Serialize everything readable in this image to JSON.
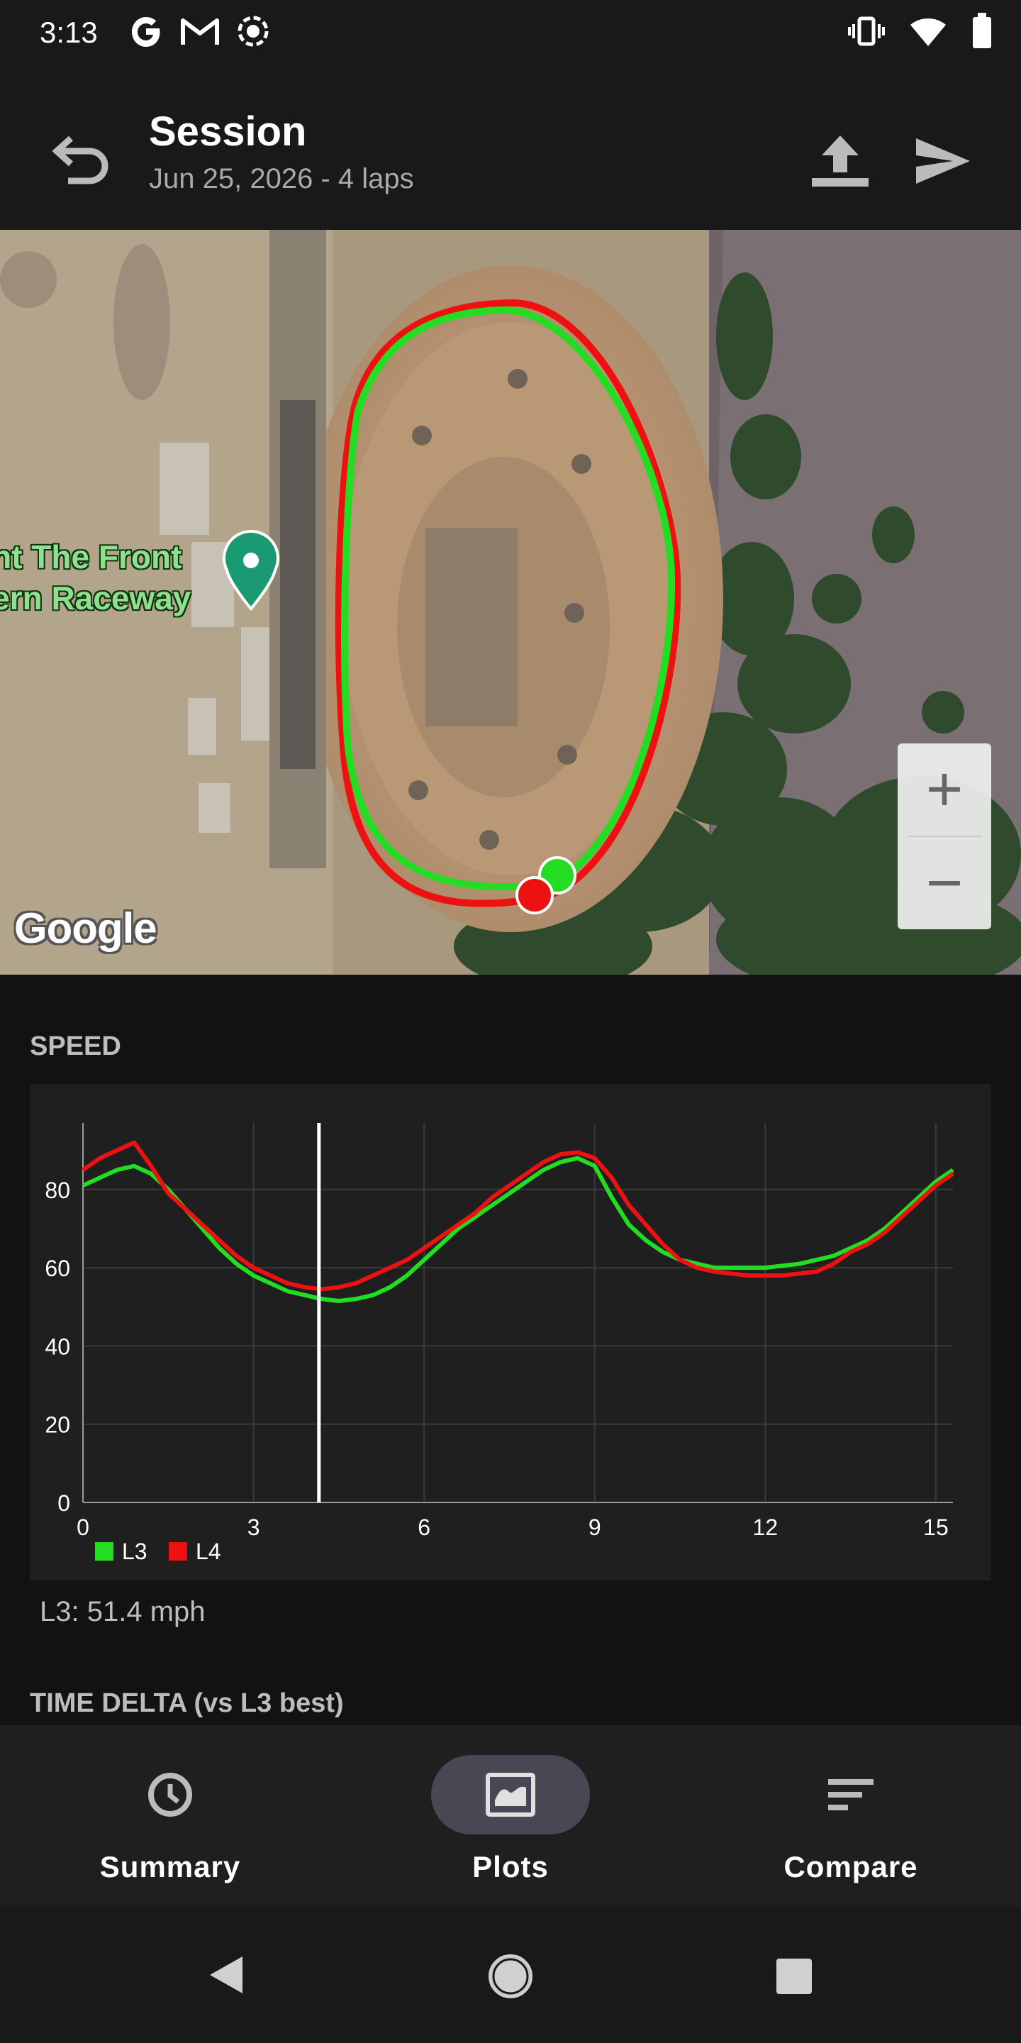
{
  "status_bar": {
    "time": "3:13",
    "left_icons": [
      "google-icon",
      "gmail-icon",
      "screen-record-icon"
    ],
    "right_icons": [
      "vibrate-icon",
      "wifi-icon",
      "battery-icon"
    ]
  },
  "app_bar": {
    "title": "Session",
    "subtitle": "Jun 25, 2026 - 4 laps",
    "actions": [
      "upload-icon",
      "send-icon"
    ]
  },
  "map": {
    "place_label_line1": "unt The Front",
    "place_label_line2": "hern Raceway",
    "attribution": "Google",
    "zoom_in_label": "+",
    "zoom_out_label": "−",
    "lap_colors": {
      "L3": "#22dd22",
      "L4": "#ee1111"
    }
  },
  "speed_section": {
    "heading": "SPEED",
    "readout": "L3: 51.4 mph"
  },
  "time_delta_section": {
    "heading": "TIME DELTA (vs L3 best)"
  },
  "chart_data": {
    "type": "line",
    "title": "SPEED",
    "xlabel": "",
    "ylabel": "",
    "xlim": [
      0,
      15.3
    ],
    "ylim": [
      0,
      97
    ],
    "xticks": [
      "0",
      "3",
      "6",
      "9",
      "12",
      "15"
    ],
    "yticks": [
      "0",
      "20",
      "40",
      "60",
      "80"
    ],
    "grid": true,
    "legend_position": "bottom-left",
    "cursor_x": 4.15,
    "series": [
      {
        "name": "L3",
        "color": "#22dd22",
        "x": [
          0,
          0.3,
          0.6,
          0.9,
          1.2,
          1.5,
          1.8,
          2.1,
          2.4,
          2.7,
          3.0,
          3.3,
          3.6,
          3.9,
          4.2,
          4.5,
          4.8,
          5.1,
          5.4,
          5.7,
          6.0,
          6.3,
          6.6,
          6.9,
          7.2,
          7.5,
          7.8,
          8.1,
          8.4,
          8.7,
          9.0,
          9.3,
          9.6,
          9.9,
          10.2,
          10.5,
          10.8,
          11.1,
          11.4,
          11.7,
          12.0,
          12.3,
          12.6,
          12.9,
          13.2,
          13.5,
          13.8,
          14.1,
          14.4,
          14.7,
          15.0,
          15.3
        ],
        "y": [
          81,
          83,
          85,
          86,
          84,
          80,
          75,
          70,
          65,
          61,
          58,
          56,
          54,
          53,
          52,
          51.5,
          52,
          53,
          55,
          58,
          62,
          66,
          70,
          73,
          76,
          79,
          82,
          85,
          87,
          88,
          86,
          78,
          71,
          67,
          64,
          62,
          61,
          60,
          60,
          60,
          60,
          60.5,
          61,
          62,
          63,
          65,
          67,
          70,
          74,
          78,
          82,
          85
        ]
      },
      {
        "name": "L4",
        "color": "#ee1111",
        "x": [
          0,
          0.3,
          0.6,
          0.9,
          1.2,
          1.5,
          1.8,
          2.1,
          2.4,
          2.7,
          3.0,
          3.3,
          3.6,
          3.9,
          4.2,
          4.5,
          4.8,
          5.1,
          5.4,
          5.7,
          6.0,
          6.3,
          6.6,
          6.9,
          7.2,
          7.5,
          7.8,
          8.1,
          8.4,
          8.7,
          9.0,
          9.3,
          9.6,
          9.9,
          10.2,
          10.5,
          10.8,
          11.1,
          11.4,
          11.7,
          12.0,
          12.3,
          12.6,
          12.9,
          13.2,
          13.5,
          13.8,
          14.1,
          14.4,
          14.7,
          15.0,
          15.3
        ],
        "y": [
          85,
          88,
          90,
          92,
          86,
          79,
          75,
          71,
          67,
          63,
          60,
          58,
          56,
          55,
          54.5,
          55,
          56,
          58,
          60,
          62,
          65,
          68,
          71,
          74,
          78,
          81,
          84,
          87,
          89,
          89.5,
          88,
          83,
          76,
          71,
          66,
          62,
          60,
          59,
          58.5,
          58,
          58,
          58,
          58.5,
          59,
          61,
          64,
          66,
          69,
          73,
          77,
          81,
          84
        ]
      }
    ]
  },
  "bottom_nav": {
    "items": [
      {
        "label": "Summary",
        "icon": "clock-icon",
        "active": false
      },
      {
        "label": "Plots",
        "icon": "map-image-icon",
        "active": true
      },
      {
        "label": "Compare",
        "icon": "sort-lines-icon",
        "active": false
      }
    ]
  },
  "system_nav": [
    "back-triangle-icon",
    "home-circle-icon",
    "recents-square-icon"
  ]
}
